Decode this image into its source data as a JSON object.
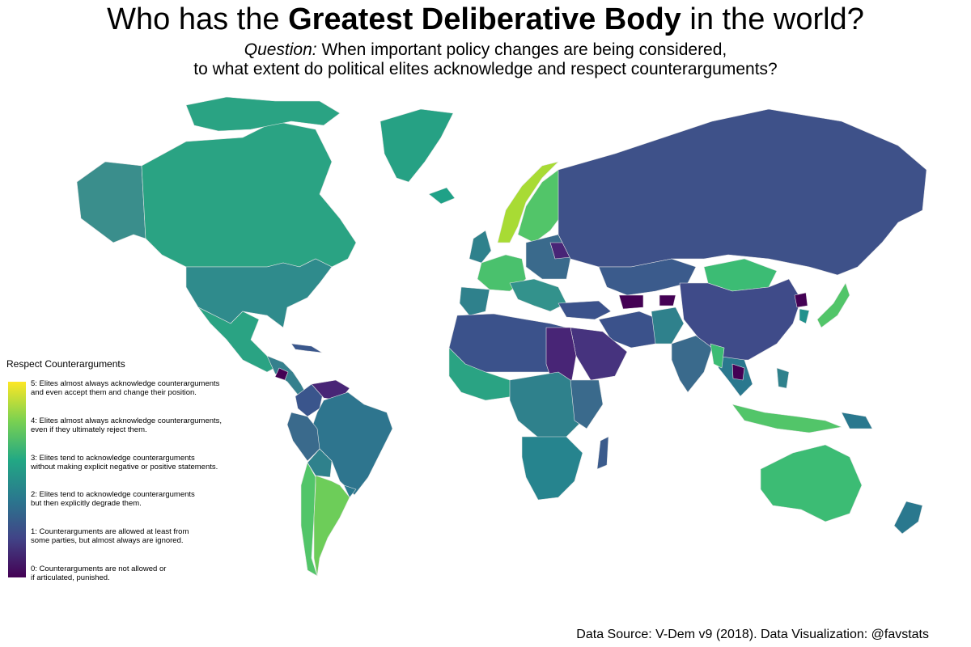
{
  "title": {
    "pre": "Who has the ",
    "bold": "Greatest Deliberative Body",
    "post": " in the world?"
  },
  "subtitle": {
    "question_label": "Question:",
    "line1": " When important policy changes are being considered,",
    "line2": "to what extent do political elites acknowledge and respect counterarguments?"
  },
  "legend": {
    "title": "Respect Counterarguments",
    "levels": [
      {
        "value": 5,
        "line1": "5: Elites almost always acknowledge counterarguments",
        "line2": "and even accept them and change their position."
      },
      {
        "value": 4,
        "line1": "4: Elites almost always acknowledge counterarguments,",
        "line2": " even if they ultimately reject them."
      },
      {
        "value": 3,
        "line1": " 3: Elites tend to acknowledge counterarguments",
        "line2": "without making explicit negative or positive statements."
      },
      {
        "value": 2,
        "line1": "2: Elites tend to acknowledge counterarguments",
        "line2": "but then explicitly degrade them."
      },
      {
        "value": 1,
        "line1": "1: Counterarguments are allowed at least from",
        "line2": "some parties, but almost always are ignored."
      },
      {
        "value": 0,
        "line1": "0: Counterarguments are not allowed or",
        "line2": "if articulated, punished."
      }
    ],
    "colors": {
      "5": "#fde725",
      "4": "#7ad151",
      "3": "#22a884",
      "2": "#2a788e",
      "1": "#414487",
      "0": "#440154"
    }
  },
  "source": "Data Source: V-Dem v9 (2018). Data Visualization: @favstats"
}
